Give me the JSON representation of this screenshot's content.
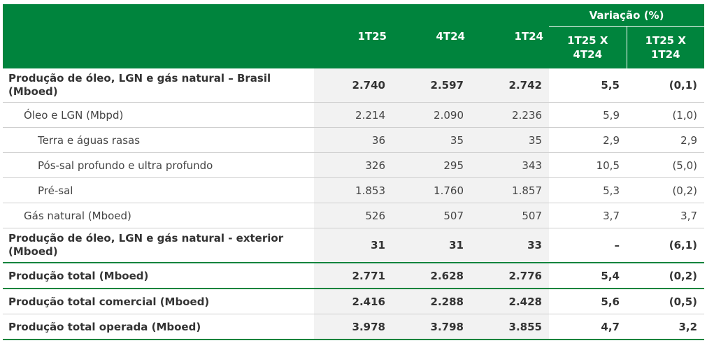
{
  "header": {
    "variation_group": "Variação (%)",
    "columns": [
      "1T25",
      "4T24",
      "1T24"
    ],
    "variation_columns": [
      {
        "line1": "1T25 X",
        "line2": "4T24"
      },
      {
        "line1": "1T25 X",
        "line2": "1T24"
      }
    ]
  },
  "rows": [
    {
      "label": "Produção de óleo, LGN e gás natural – Brasil (Mboed)",
      "v1": "2.740",
      "v2": "2.597",
      "v3": "2.742",
      "var1": "5,5",
      "var2": "(0,1)"
    },
    {
      "label": "Óleo e LGN (Mbpd)",
      "v1": "2.214",
      "v2": "2.090",
      "v3": "2.236",
      "var1": "5,9",
      "var2": "(1,0)"
    },
    {
      "label": "Terra e águas rasas",
      "v1": "36",
      "v2": "35",
      "v3": "35",
      "var1": "2,9",
      "var2": "2,9"
    },
    {
      "label": "Pós-sal profundo e ultra profundo",
      "v1": "326",
      "v2": "295",
      "v3": "343",
      "var1": "10,5",
      "var2": "(5,0)"
    },
    {
      "label": "Pré-sal",
      "v1": "1.853",
      "v2": "1.760",
      "v3": "1.857",
      "var1": "5,3",
      "var2": "(0,2)"
    },
    {
      "label": "Gás natural (Mboed)",
      "v1": "526",
      "v2": "507",
      "v3": "507",
      "var1": "3,7",
      "var2": "3,7"
    },
    {
      "label": "Produção de óleo, LGN e gás natural - exterior (Mboed)",
      "v1": "31",
      "v2": "31",
      "v3": "33",
      "var1": "–",
      "var2": "(6,1)"
    },
    {
      "label": "Produção total (Mboed)",
      "v1": "2.771",
      "v2": "2.628",
      "v3": "2.776",
      "var1": "5,4",
      "var2": "(0,2)"
    },
    {
      "label": "Produção total comercial (Mboed)",
      "v1": "2.416",
      "v2": "2.288",
      "v3": "2.428",
      "var1": "5,6",
      "var2": "(0,5)"
    },
    {
      "label": "Produção total operada (Mboed)",
      "v1": "3.978",
      "v2": "3.798",
      "v3": "3.855",
      "var1": "4,7",
      "var2": "3,2"
    }
  ]
}
